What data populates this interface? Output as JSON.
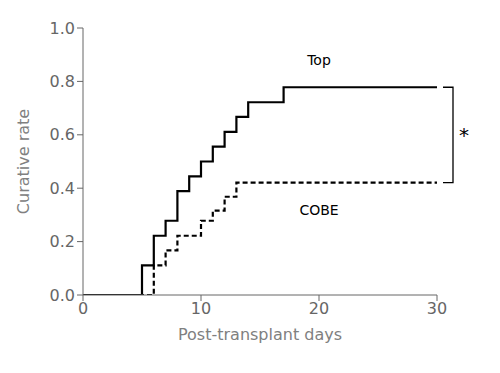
{
  "chart_data": {
    "type": "line",
    "step": true,
    "color": "#000000",
    "x_label": "Post-transplant days",
    "y_label": "Curative rate",
    "series": [
      {
        "name": "Top",
        "line_style": "solid",
        "x": [
          0,
          4,
          5,
          6,
          7,
          8,
          9,
          10,
          11,
          12,
          13,
          14,
          17,
          30
        ],
        "values": [
          0,
          0,
          0.111,
          0.222,
          0.278,
          0.389,
          0.444,
          0.5,
          0.556,
          0.611,
          0.667,
          0.722,
          0.778,
          0.778
        ]
      },
      {
        "name": "COBE",
        "line_style": "dashed",
        "x": [
          0,
          5,
          6,
          7,
          8,
          9,
          10,
          11,
          12,
          13,
          16,
          30
        ],
        "values": [
          0,
          0,
          0.111,
          0.167,
          0.222,
          0.222,
          0.278,
          0.316,
          0.368,
          0.421,
          0.421,
          0.421
        ]
      }
    ],
    "xlim": [
      0,
      30
    ],
    "ylim": [
      0,
      1.0
    ],
    "xticks": [
      0,
      10,
      20,
      30
    ],
    "yticks": [
      {
        "value": 0,
        "label": "0.0"
      },
      0.2,
      0.4,
      0.6,
      0.8,
      {
        "value": 1,
        "label": "1.0"
      }
    ],
    "grid": false,
    "legend": "none",
    "annotations": [
      {
        "text": "Top",
        "x": 20,
        "y": 0.88
      },
      {
        "text": "COBE",
        "x": 20,
        "y": 0.32
      }
    ],
    "significance": {
      "text": "*",
      "y_from": 0.421,
      "y_to": 0.778
    }
  }
}
